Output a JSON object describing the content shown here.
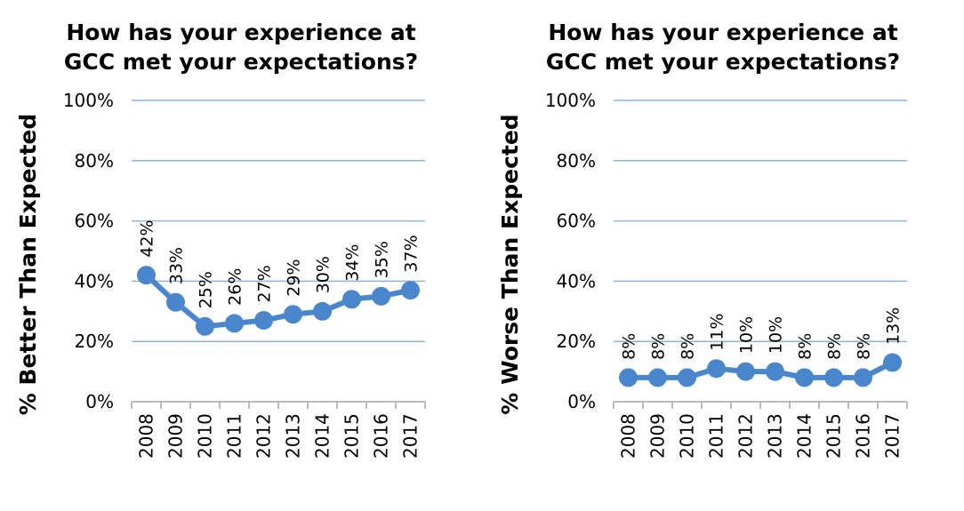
{
  "chart_data": [
    {
      "type": "line",
      "title_lines": [
        "How has your experience at",
        "GCC met your expectations?"
      ],
      "xlabel": "",
      "ylabel": "% Better Than Expected",
      "categories": [
        "2008",
        "2009",
        "2010",
        "2011",
        "2012",
        "2013",
        "2014",
        "2015",
        "2016",
        "2017"
      ],
      "values": [
        42,
        33,
        25,
        26,
        27,
        29,
        30,
        34,
        35,
        37
      ],
      "data_labels": [
        "42%",
        "33%",
        "25%",
        "26%",
        "27%",
        "29%",
        "30%",
        "34%",
        "35%",
        "37%"
      ],
      "ylim": [
        0,
        100
      ],
      "yticks": [
        "0%",
        "20%",
        "40%",
        "60%",
        "80%",
        "100%"
      ],
      "grid": true,
      "legend": "none"
    },
    {
      "type": "line",
      "title_lines": [
        "How has your experience at",
        "GCC met your expectations?"
      ],
      "xlabel": "",
      "ylabel": "% Worse Than Expected",
      "categories": [
        "2008",
        "2009",
        "2010",
        "2011",
        "2012",
        "2013",
        "2014",
        "2015",
        "2016",
        "2017"
      ],
      "values": [
        8,
        8,
        8,
        11,
        10,
        10,
        8,
        8,
        8,
        13
      ],
      "data_labels": [
        "8%",
        "8%",
        "8%",
        "11%",
        "10%",
        "10%",
        "8%",
        "8%",
        "8%",
        "13%"
      ],
      "ylim": [
        0,
        100
      ],
      "yticks": [
        "0%",
        "20%",
        "40%",
        "60%",
        "80%",
        "100%"
      ],
      "grid": true,
      "legend": "none"
    }
  ],
  "colors": {
    "series": "#4a86cc",
    "grid": "#8fb4dc",
    "axis": "#a6a6a6"
  }
}
